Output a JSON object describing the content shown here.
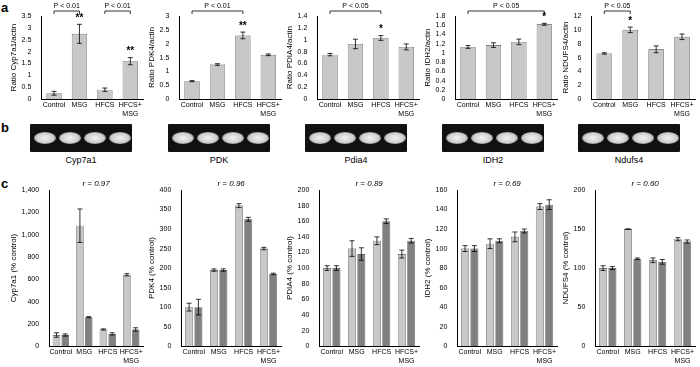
{
  "panel_labels": [
    "a",
    "b",
    "c"
  ],
  "gel_labels": [
    "Cyp7a1",
    "PDK",
    "Pdia4",
    "IDH2",
    "Ndufs4"
  ],
  "chart_data": [
    {
      "type": "bar",
      "panel": "a",
      "ylabel": "Ratio Cyp7a1/actin",
      "categories": [
        "Control",
        "MSG",
        "HFCS",
        "HFCS+MSG"
      ],
      "values": [
        0.25,
        2.75,
        0.4,
        1.6
      ],
      "errors": [
        0.08,
        0.4,
        0.07,
        0.15
      ],
      "color": "#c8c8c8",
      "ylim": [
        0,
        3.5
      ],
      "yticks": [
        0,
        0.5,
        1,
        1.5,
        2,
        2.5,
        3,
        3.5
      ],
      "grid": false,
      "stars": [
        null,
        "**",
        null,
        "**"
      ],
      "significance": [
        {
          "from": "Control",
          "to": "MSG",
          "label": "P < 0.01"
        },
        {
          "from": "HFCS",
          "to": "HFCS+MSG",
          "label": "P < 0.01"
        }
      ]
    },
    {
      "type": "bar",
      "panel": "a",
      "ylabel": "Ratio PDK4/actin",
      "categories": [
        "Control",
        "MSG",
        "HFCS",
        "HFCS+MSG"
      ],
      "values": [
        0.65,
        1.25,
        2.3,
        1.6
      ],
      "errors": [
        0.02,
        0.03,
        0.12,
        0.03
      ],
      "color": "#c8c8c8",
      "ylim": [
        0,
        3
      ],
      "yticks": [
        0,
        0.5,
        1,
        1.5,
        2,
        2.5,
        3
      ],
      "grid": false,
      "stars": [
        null,
        null,
        "**",
        null
      ],
      "significance": [
        {
          "from": "Control",
          "to": "HFCS",
          "label": "P < 0.01"
        }
      ]
    },
    {
      "type": "bar",
      "panel": "a",
      "ylabel": "Ratio PDIA4/actin",
      "categories": [
        "Control",
        "MSG",
        "HFCS",
        "HFCS+MSG"
      ],
      "values": [
        0.75,
        0.93,
        1.03,
        0.88
      ],
      "errors": [
        0.02,
        0.08,
        0.04,
        0.05
      ],
      "color": "#c8c8c8",
      "ylim": [
        0,
        1.4
      ],
      "yticks": [
        0,
        0.2,
        0.4,
        0.6,
        0.8,
        1,
        1.2,
        1.4
      ],
      "grid": false,
      "stars": [
        null,
        null,
        "*",
        null
      ],
      "significance": [
        {
          "from": "Control",
          "to": "HFCS",
          "label": "P < 0.05"
        }
      ]
    },
    {
      "type": "bar",
      "panel": "a",
      "ylabel": "Ratio IDH2/actin",
      "categories": [
        "Control",
        "MSG",
        "HFCS",
        "HFCS+MSG"
      ],
      "values": [
        1.13,
        1.17,
        1.24,
        1.62
      ],
      "errors": [
        0.03,
        0.05,
        0.06,
        0.02
      ],
      "color": "#c8c8c8",
      "ylim": [
        0,
        1.8
      ],
      "yticks": [
        0,
        0.2,
        0.4,
        0.6,
        0.8,
        1,
        1.2,
        1.4,
        1.6,
        1.8
      ],
      "grid": false,
      "stars": [
        null,
        null,
        null,
        "*"
      ],
      "significance": [
        {
          "from": "Control",
          "to": "HFCS+MSG",
          "label": "P < 0.05"
        }
      ]
    },
    {
      "type": "bar",
      "panel": "a",
      "ylabel": "Ratio NDUFS4/actin",
      "categories": [
        "Control",
        "MSG",
        "HFCS",
        "HFCS+MSG"
      ],
      "values": [
        6.6,
        10,
        7.2,
        9
      ],
      "errors": [
        0.1,
        0.4,
        0.5,
        0.4
      ],
      "color": "#c8c8c8",
      "ylim": [
        0,
        12
      ],
      "yticks": [
        0,
        2,
        4,
        6,
        8,
        10,
        12
      ],
      "grid": false,
      "stars": [
        null,
        "*",
        null,
        null
      ],
      "significance": [
        {
          "from": "Control",
          "to": "MSG",
          "label": "P < 0.05"
        }
      ]
    },
    {
      "type": "bar",
      "panel": "c",
      "ylabel": "Cyp7a1 (% control)",
      "annotation": "r = 0.97",
      "categories": [
        "Control",
        "MSG",
        "HFCS",
        "HFCS+MSG"
      ],
      "series": [
        {
          "color": "#c8c8c8",
          "values": [
            100,
            1080,
            150,
            640
          ],
          "errors": [
            20,
            150,
            5,
            10
          ]
        },
        {
          "color": "#808080",
          "values": [
            100,
            260,
            110,
            150
          ],
          "errors": [
            10,
            5,
            10,
            15
          ]
        }
      ],
      "ylim": [
        0,
        1400
      ],
      "yticks": [
        0,
        200,
        400,
        600,
        800,
        {
          "value": 1000,
          "label": "1,000"
        },
        {
          "value": 1200,
          "label": "1,200"
        },
        {
          "value": 1400,
          "label": "1,400"
        }
      ],
      "grid": false
    },
    {
      "type": "bar",
      "panel": "c",
      "ylabel": "PDK4 (% control)",
      "annotation": "r = 0.96",
      "categories": [
        "Control",
        "MSG",
        "HFCS",
        "HFCS+MSG"
      ],
      "series": [
        {
          "color": "#c8c8c8",
          "values": [
            100,
            195,
            360,
            250
          ],
          "errors": [
            10,
            3,
            5,
            3
          ]
        },
        {
          "color": "#808080",
          "values": [
            100,
            195,
            325,
            185
          ],
          "errors": [
            20,
            3,
            5,
            2
          ]
        }
      ],
      "ylim": [
        0,
        400
      ],
      "yticks": [
        0,
        50,
        100,
        150,
        200,
        250,
        300,
        350,
        400
      ],
      "grid": false
    },
    {
      "type": "bar",
      "panel": "c",
      "ylabel": "PDIA4 (% control)",
      "annotation": "r = 0.89",
      "categories": [
        "Control",
        "MSG",
        "HFCS",
        "HFCS+MSG"
      ],
      "series": [
        {
          "color": "#c8c8c8",
          "values": [
            100,
            125,
            135,
            118
          ],
          "errors": [
            3,
            10,
            5,
            5
          ]
        },
        {
          "color": "#808080",
          "values": [
            100,
            118,
            160,
            135
          ],
          "errors": [
            3,
            8,
            3,
            3
          ]
        }
      ],
      "ylim": [
        0,
        200
      ],
      "yticks": [
        0,
        20,
        40,
        60,
        80,
        100,
        120,
        140,
        160,
        180,
        200
      ],
      "grid": false
    },
    {
      "type": "bar",
      "panel": "c",
      "ylabel": "IDH2 (% control)",
      "annotation": "r = 0.69",
      "categories": [
        "Control",
        "MSG",
        "HFCS",
        "HFCS+MSG"
      ],
      "series": [
        {
          "color": "#c8c8c8",
          "values": [
            100,
            105,
            112,
            143
          ],
          "errors": [
            3,
            5,
            5,
            3
          ]
        },
        {
          "color": "#808080",
          "values": [
            100,
            108,
            118,
            145
          ],
          "errors": [
            3,
            2,
            2,
            5
          ]
        }
      ],
      "ylim": [
        0,
        160
      ],
      "yticks": [
        0,
        20,
        40,
        60,
        80,
        100,
        120,
        140,
        160
      ],
      "grid": false
    },
    {
      "type": "bar",
      "panel": "c",
      "ylabel": "NDUFS4 (% control)",
      "annotation": "r = 0.60",
      "categories": [
        "Control",
        "MSG",
        "HFCS",
        "HFCS+MSG"
      ],
      "series": [
        {
          "color": "#c8c8c8",
          "values": [
            100,
            150,
            110,
            137
          ],
          "errors": [
            3,
            0,
            3,
            2
          ]
        },
        {
          "color": "#808080",
          "values": [
            100,
            112,
            108,
            134
          ],
          "errors": [
            2,
            1,
            3,
            2
          ]
        }
      ],
      "ylim": [
        0,
        200
      ],
      "yticks": [
        0,
        50,
        100,
        150,
        200
      ],
      "grid": false
    }
  ]
}
